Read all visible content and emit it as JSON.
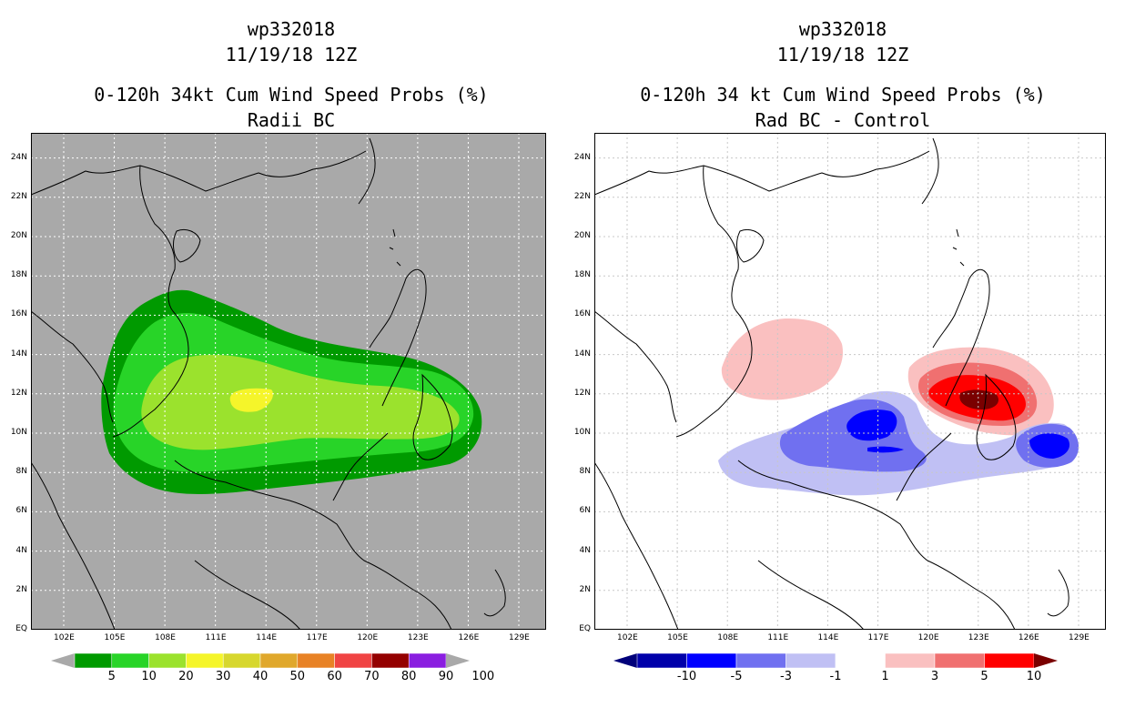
{
  "left_panel": {
    "title1": "wp332018",
    "title2": "11/19/18 12Z",
    "title3": "0-120h 34kt Cum Wind Speed Probs (%)",
    "title4": "Radii BC",
    "colorbar": {
      "labels": [
        "5",
        "10",
        "20",
        "30",
        "40",
        "50",
        "60",
        "70",
        "80",
        "90",
        "100"
      ],
      "colors": [
        "#009a00",
        "#28d428",
        "#9be22d",
        "#f5f52a",
        "#d7d72e",
        "#e0a82c",
        "#e88226",
        "#f04444",
        "#940000",
        "#8a1ee0"
      ]
    }
  },
  "right_panel": {
    "title1": "wp332018",
    "title2": "11/19/18 12Z",
    "title3": "0-120h 34 kt Cum Wind Speed Probs (%)",
    "title4": "Rad BC - Control",
    "colorbar": {
      "labels": [
        "-10",
        "-5",
        "-3",
        "-1",
        "1",
        "3",
        "5",
        "10"
      ],
      "colors": [
        "#0000aa",
        "#0000ff",
        "#7070f0",
        "#c0c0f4",
        "#ffffff",
        "#fac0c0",
        "#f07070",
        "#ff0000"
      ]
    }
  },
  "lon_labels": [
    "102E",
    "105E",
    "108E",
    "111E",
    "114E",
    "117E",
    "120E",
    "123E",
    "126E",
    "129E"
  ],
  "lat_labels": [
    "EQ",
    "2N",
    "4N",
    "6N",
    "8N",
    "10N",
    "12N",
    "14N",
    "16N",
    "18N",
    "20N",
    "22N",
    "24N"
  ]
}
